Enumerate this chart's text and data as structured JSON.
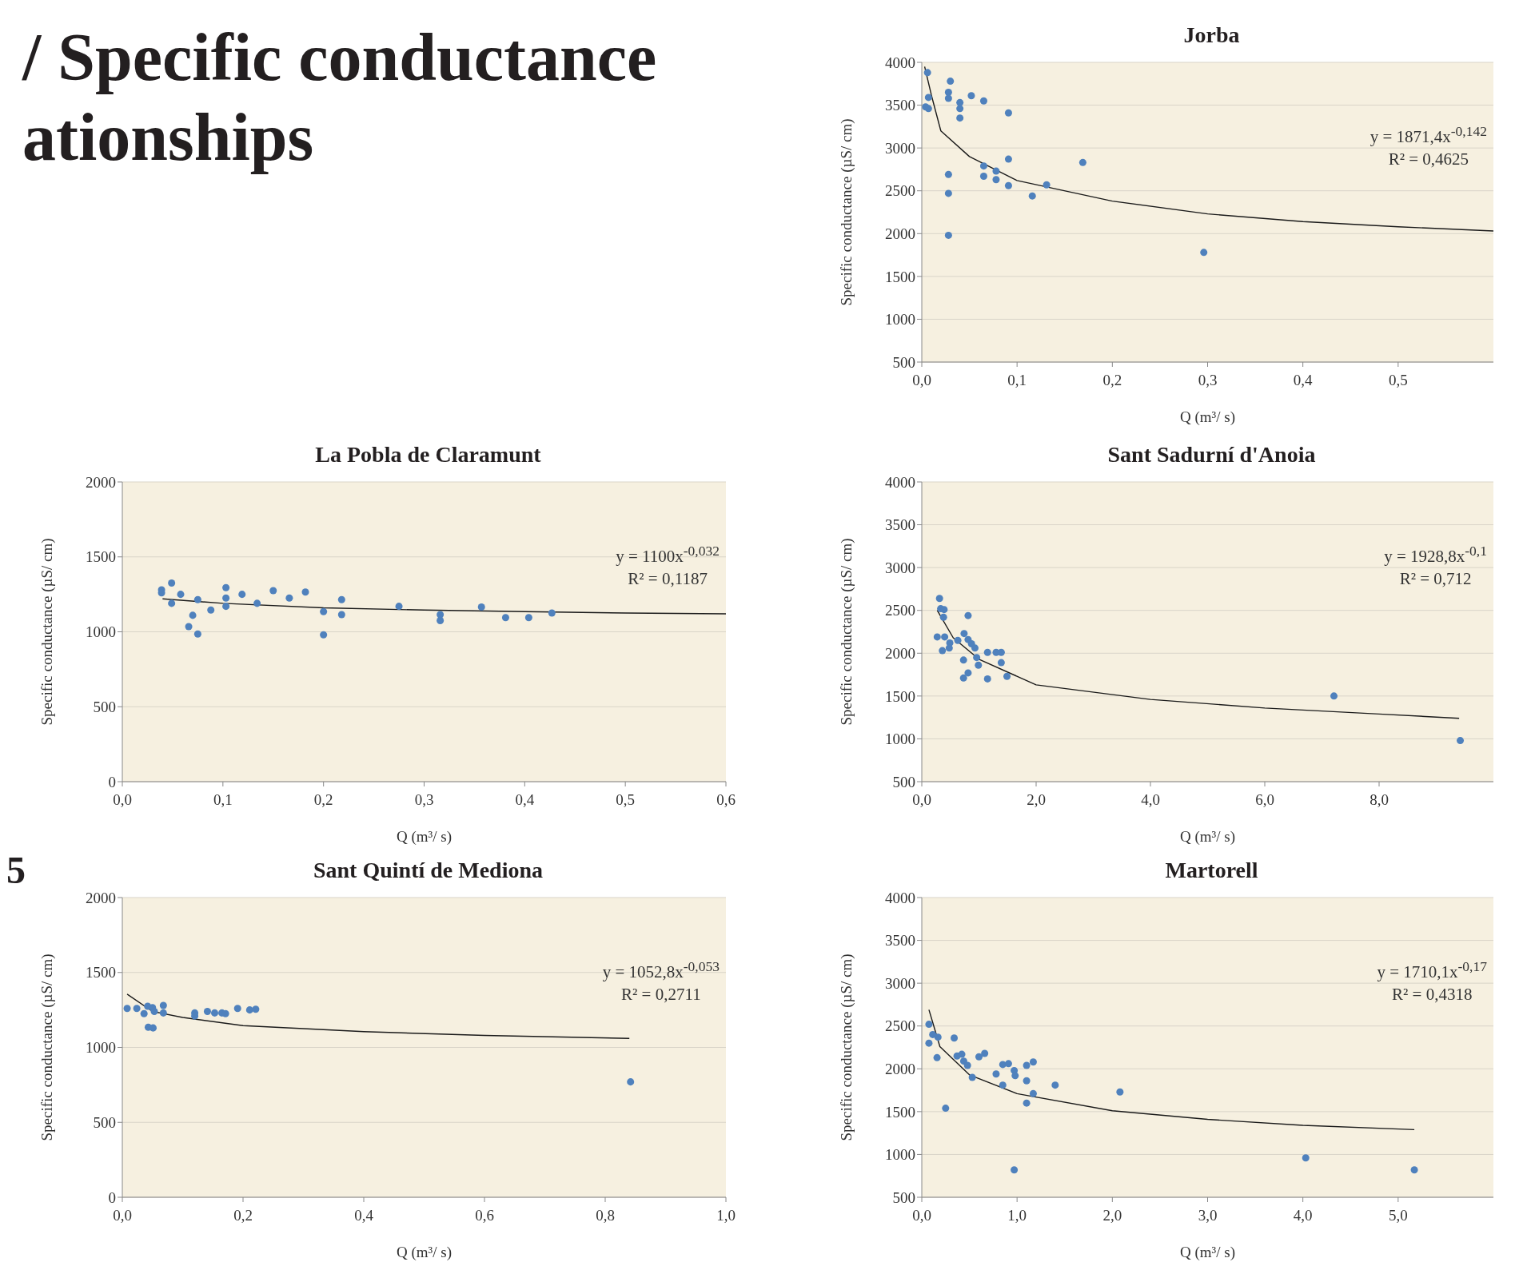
{
  "chart_data": [
    {
      "type": "other",
      "annotations": [
        "/ Specific conductance",
        "ationships",
        "5"
      ]
    },
    {
      "type": "scatter",
      "title": "Jorba",
      "xlabel": "Q (m³/ s)",
      "ylabel": "Specific conductance (µS/ cm)",
      "xlim": [
        0,
        0.6
      ],
      "ylim": [
        500,
        4000
      ],
      "xticks": [
        {
          "value": 0,
          "label": "0,0"
        },
        {
          "value": 0.1,
          "label": "0,1"
        },
        {
          "value": 0.2,
          "label": "0,2"
        },
        {
          "value": 0.3,
          "label": "0,3"
        },
        {
          "value": 0.4,
          "label": "0,4"
        },
        {
          "value": 0.5,
          "label": "0,5"
        }
      ],
      "yticks": [
        500,
        1000,
        1500,
        2000,
        2500,
        3000,
        3500,
        4000
      ],
      "grid": "y",
      "marker": "circle",
      "line_style": "solid",
      "annotations": [
        "y = 1871,4x$^{-0,142}$",
        "R² = 0,4625"
      ],
      "series": [
        {
          "type": "scatter",
          "color": "#4f81bd",
          "x": [
            0.006,
            0.007,
            0.004,
            0.007,
            0.03,
            0.028,
            0.028,
            0.04,
            0.04,
            0.04,
            0.052,
            0.065,
            0.091,
            0.028,
            0.028,
            0.028,
            0.065,
            0.065,
            0.078,
            0.078,
            0.091,
            0.091,
            0.116,
            0.131,
            0.169,
            0.296
          ],
          "values": [
            3880,
            3590,
            3480,
            3460,
            3780,
            3650,
            3580,
            3530,
            3460,
            3350,
            3610,
            3550,
            3410,
            2690,
            2470,
            1980,
            2790,
            2670,
            2730,
            2630,
            2870,
            2560,
            2440,
            2570,
            2830,
            1780
          ]
        },
        {
          "type": "line",
          "marker": "none",
          "color": "#1a1a1a",
          "x": [
            0.003,
            0.01,
            0.02,
            0.05,
            0.1,
            0.2,
            0.3,
            0.4,
            0.5,
            0.6
          ],
          "values": [
            3950,
            3620,
            3200,
            2900,
            2620,
            2380,
            2230,
            2140,
            2080,
            2030
          ]
        }
      ]
    },
    {
      "type": "scatter",
      "title": "La Pobla de Claramunt",
      "xlabel": "Q (m³/ s)",
      "ylabel": "Specific conductance (µS/ cm)",
      "xlim": [
        0,
        0.6
      ],
      "ylim": [
        0,
        2000
      ],
      "xticks": [
        {
          "value": 0,
          "label": "0,0"
        },
        {
          "value": 0.1,
          "label": "0,1"
        },
        {
          "value": 0.2,
          "label": "0,2"
        },
        {
          "value": 0.3,
          "label": "0,3"
        },
        {
          "value": 0.4,
          "label": "0,4"
        },
        {
          "value": 0.5,
          "label": "0,5"
        },
        {
          "value": 0.6,
          "label": "0,6"
        }
      ],
      "yticks": [
        0,
        500,
        1000,
        1500,
        2000
      ],
      "grid": "y",
      "marker": "circle",
      "line_style": "solid",
      "annotations": [
        "y = 1100x$^{-0,032}$",
        "R² = 0,1187"
      ],
      "series": [
        {
          "type": "scatter",
          "color": "#4f81bd",
          "x": [
            0.039,
            0.039,
            0.049,
            0.049,
            0.058,
            0.066,
            0.07,
            0.075,
            0.075,
            0.088,
            0.103,
            0.103,
            0.103,
            0.119,
            0.134,
            0.15,
            0.166,
            0.182,
            0.2,
            0.2,
            0.218,
            0.218,
            0.275,
            0.316,
            0.316,
            0.357,
            0.381,
            0.404,
            0.427
          ],
          "values": [
            1280,
            1260,
            1325,
            1190,
            1250,
            1035,
            1110,
            1215,
            985,
            1145,
            1295,
            1225,
            1170,
            1250,
            1190,
            1275,
            1225,
            1265,
            1135,
            980,
            1215,
            1115,
            1170,
            1115,
            1075,
            1165,
            1095,
            1095,
            1125
          ]
        },
        {
          "type": "line",
          "marker": "none",
          "color": "#1a1a1a",
          "x": [
            0.04,
            0.1,
            0.2,
            0.3,
            0.4,
            0.5,
            0.6
          ],
          "values": [
            1220,
            1190,
            1160,
            1145,
            1135,
            1125,
            1120
          ]
        }
      ]
    },
    {
      "type": "scatter",
      "title": "Sant Sadurní d'Anoia",
      "xlabel": "Q (m³/ s)",
      "ylabel": "Specific conductance (µS/ cm)",
      "xlim": [
        0,
        10
      ],
      "ylim": [
        500,
        4000
      ],
      "xticks": [
        {
          "value": 0,
          "label": "0,0"
        },
        {
          "value": 2,
          "label": "2,0"
        },
        {
          "value": 4,
          "label": "4,0"
        },
        {
          "value": 6,
          "label": "6,0"
        },
        {
          "value": 8,
          "label": "8,0"
        }
      ],
      "yticks": [
        500,
        1000,
        1500,
        2000,
        2500,
        3000,
        3500,
        4000
      ],
      "grid": "y",
      "marker": "circle",
      "line_style": "solid",
      "annotations": [
        "y = 1928,8x$^{-0,1}$",
        "R² = 0,712"
      ],
      "series": [
        {
          "type": "scatter",
          "color": "#4f81bd",
          "x": [
            0.31,
            0.33,
            0.39,
            0.38,
            0.27,
            0.4,
            0.36,
            0.49,
            0.48,
            0.63,
            0.74,
            0.81,
            0.81,
            0.87,
            0.73,
            0.81,
            0.73,
            0.93,
            0.96,
            0.99,
            1.15,
            1.3,
            1.39,
            1.39,
            1.15,
            1.49,
            7.21,
            9.42
          ],
          "values": [
            2640,
            2520,
            2510,
            2420,
            2190,
            2190,
            2030,
            2120,
            2060,
            2150,
            2230,
            2440,
            2160,
            2110,
            1920,
            1770,
            1710,
            2060,
            1950,
            1860,
            2010,
            2010,
            2010,
            1890,
            1700,
            1730,
            1500,
            980
          ]
        },
        {
          "type": "line",
          "marker": "none",
          "color": "#1a1a1a",
          "x": [
            0.27,
            0.55,
            1,
            2,
            4,
            6,
            8,
            9.4
          ],
          "values": [
            2500,
            2180,
            1930,
            1630,
            1460,
            1360,
            1290,
            1240
          ]
        }
      ]
    },
    {
      "type": "scatter",
      "title": "Sant Quintí de Mediona",
      "xlabel": "Q (m³/ s)",
      "ylabel": "Specific conductance (µS/ cm)",
      "xlim": [
        0,
        1
      ],
      "ylim": [
        0,
        2000
      ],
      "xticks": [
        {
          "value": 0,
          "label": "0,0"
        },
        {
          "value": 0.2,
          "label": "0,2"
        },
        {
          "value": 0.4,
          "label": "0,4"
        },
        {
          "value": 0.6,
          "label": "0,6"
        },
        {
          "value": 0.8,
          "label": "0,8"
        },
        {
          "value": 1,
          "label": "1,0"
        }
      ],
      "yticks": [
        0,
        500,
        1000,
        1500,
        2000
      ],
      "grid": "y",
      "marker": "circle",
      "line_style": "solid",
      "annotations": [
        "y = 1052,8x$^{-0,053}$",
        "R² = 0,2711"
      ],
      "series": [
        {
          "type": "scatter",
          "color": "#4f81bd",
          "x": [
            0.008,
            0.024,
            0.036,
            0.042,
            0.05,
            0.053,
            0.043,
            0.051,
            0.068,
            0.068,
            0.12,
            0.12,
            0.141,
            0.153,
            0.165,
            0.171,
            0.191,
            0.211,
            0.221,
            0.842
          ],
          "values": [
            1260,
            1260,
            1225,
            1275,
            1265,
            1240,
            1135,
            1130,
            1280,
            1230,
            1230,
            1210,
            1240,
            1230,
            1230,
            1225,
            1260,
            1250,
            1255,
            770
          ]
        },
        {
          "type": "line",
          "marker": "none",
          "color": "#1a1a1a",
          "x": [
            0.008,
            0.05,
            0.1,
            0.2,
            0.4,
            0.6,
            0.84
          ],
          "values": [
            1355,
            1240,
            1200,
            1145,
            1105,
            1080,
            1060
          ]
        }
      ]
    },
    {
      "type": "scatter",
      "title": "Martorell",
      "xlabel": "Q (m³/ s)",
      "ylabel": "Specific conductance (µS/ cm)",
      "xlim": [
        0,
        6
      ],
      "ylim": [
        500,
        4000
      ],
      "xticks": [
        {
          "value": 0,
          "label": "0,0"
        },
        {
          "value": 1,
          "label": "1,0"
        },
        {
          "value": 2,
          "label": "2,0"
        },
        {
          "value": 3,
          "label": "3,0"
        },
        {
          "value": 4,
          "label": "4,0"
        },
        {
          "value": 5,
          "label": "5,0"
        }
      ],
      "yticks": [
        500,
        1000,
        1500,
        2000,
        2500,
        3000,
        3500,
        4000
      ],
      "grid": "y",
      "marker": "circle",
      "line_style": "solid",
      "annotations": [
        "y = 1710,1x$^{-0,17}$",
        "R² = 0,4318"
      ],
      "series": [
        {
          "type": "scatter",
          "color": "#4f81bd",
          "x": [
            0.075,
            0.075,
            0.115,
            0.17,
            0.16,
            0.25,
            0.34,
            0.37,
            0.42,
            0.44,
            0.48,
            0.53,
            0.6,
            0.66,
            0.78,
            0.85,
            0.91,
            0.85,
            0.97,
            0.98,
            0.97,
            1.1,
            1.1,
            1.17,
            1.17,
            1.1,
            1.4,
            2.08,
            4.03,
            5.17
          ],
          "values": [
            2520,
            2300,
            2400,
            2370,
            2130,
            1540,
            2360,
            2150,
            2170,
            2090,
            2040,
            1900,
            2140,
            2180,
            1940,
            2050,
            2060,
            1810,
            1980,
            1920,
            820,
            2040,
            1860,
            2080,
            1710,
            1600,
            1810,
            1730,
            960,
            820
          ]
        },
        {
          "type": "line",
          "marker": "none",
          "color": "#1a1a1a",
          "x": [
            0.075,
            0.19,
            0.5,
            1,
            2,
            3,
            4,
            5.17
          ],
          "values": [
            2690,
            2260,
            1930,
            1710,
            1510,
            1410,
            1340,
            1290
          ]
        }
      ]
    }
  ]
}
